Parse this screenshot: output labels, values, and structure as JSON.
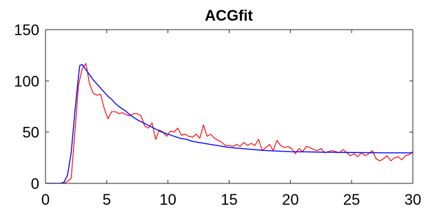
{
  "chart_data": {
    "type": "line",
    "title": "ACGfit",
    "xlabel": "",
    "ylabel": "",
    "xlim": [
      0,
      30
    ],
    "ylim": [
      0,
      150
    ],
    "x_ticks": [
      0,
      5,
      10,
      15,
      20,
      25,
      30
    ],
    "y_ticks": [
      0,
      50,
      100,
      150
    ],
    "grid": false,
    "legend": "none",
    "series": [
      {
        "color": "#ff0000",
        "x": [
          0,
          0.3,
          0.6,
          0.9,
          1.2,
          1.5,
          1.8,
          2.1,
          2.4,
          2.7,
          3.0,
          3.3,
          3.6,
          3.9,
          4.2,
          4.5,
          4.8,
          5.1,
          5.4,
          5.7,
          6.0,
          6.3,
          6.6,
          6.9,
          7.2,
          7.5,
          7.8,
          8.1,
          8.4,
          8.7,
          9.0,
          9.3,
          9.6,
          9.9,
          10.2,
          10.5,
          10.8,
          11.1,
          11.4,
          11.7,
          12.0,
          12.3,
          12.6,
          12.9,
          13.2,
          13.5,
          13.8,
          14.1,
          14.4,
          14.7,
          15.0,
          15.3,
          15.6,
          15.9,
          16.2,
          16.5,
          16.8,
          17.1,
          17.4,
          17.7,
          18.0,
          18.3,
          18.6,
          18.9,
          19.2,
          19.5,
          19.8,
          20.1,
          20.4,
          20.7,
          21.0,
          21.3,
          21.6,
          21.9,
          22.2,
          22.5,
          22.8,
          23.1,
          23.4,
          23.7,
          24.0,
          24.3,
          24.6,
          24.9,
          25.2,
          25.5,
          25.8,
          26.1,
          26.4,
          26.7,
          27.0,
          27.3,
          27.6,
          27.9,
          28.2,
          28.5,
          28.8,
          29.1,
          29.4,
          29.7,
          30.0
        ],
        "y": [
          0,
          0,
          0,
          0,
          0,
          0,
          2,
          5,
          50,
          96,
          112,
          117,
          97,
          88,
          86,
          87,
          73,
          63,
          70,
          70,
          68,
          69,
          67,
          66,
          68,
          68,
          66,
          56,
          54,
          59,
          43,
          52,
          50,
          46,
          51,
          50,
          54,
          47,
          48,
          46,
          45,
          48,
          44,
          57,
          46,
          48,
          44,
          42,
          40,
          37,
          37,
          36,
          38,
          36,
          40,
          37,
          39,
          37,
          43,
          32,
          35,
          38,
          32,
          42,
          37,
          35,
          36,
          34,
          29,
          34,
          31,
          36,
          35,
          33,
          32,
          34,
          30,
          31,
          32,
          31,
          30,
          33,
          30,
          27,
          29,
          26,
          30,
          27,
          29,
          32,
          24,
          22,
          24,
          27,
          22,
          25,
          26,
          23,
          27,
          28,
          31
        ]
      },
      {
        "color": "#0000ff",
        "x": [
          0,
          0.3,
          0.6,
          0.9,
          1.2,
          1.5,
          1.8,
          2.1,
          2.4,
          2.7,
          2.8,
          3.0,
          3.3,
          3.6,
          3.9,
          4.2,
          4.5,
          4.8,
          5.1,
          5.4,
          5.7,
          6.0,
          6.5,
          7.0,
          7.5,
          8.0,
          8.5,
          9.0,
          9.5,
          10.0,
          10.5,
          11.0,
          11.5,
          12.0,
          12.5,
          13.0,
          13.5,
          14.0,
          14.5,
          15.0,
          16.0,
          17.0,
          18.0,
          19.0,
          20.0,
          21.0,
          22.0,
          23.0,
          24.0,
          25.0,
          26.0,
          27.0,
          28.0,
          29.0,
          30.0
        ],
        "y": [
          0,
          0,
          0,
          0,
          0,
          1,
          8,
          30,
          70,
          105,
          115,
          116,
          111,
          106,
          101,
          97,
          93,
          89,
          85,
          82,
          78,
          75,
          71,
          66,
          62,
          59,
          56,
          53,
          50,
          48,
          46,
          44,
          43,
          41,
          40,
          39,
          38,
          37,
          36,
          35,
          34,
          33,
          32,
          31.5,
          31,
          30.8,
          30.6,
          30.4,
          30.2,
          30.1,
          30,
          29.9,
          29.8,
          29.8,
          29.8
        ]
      }
    ]
  }
}
